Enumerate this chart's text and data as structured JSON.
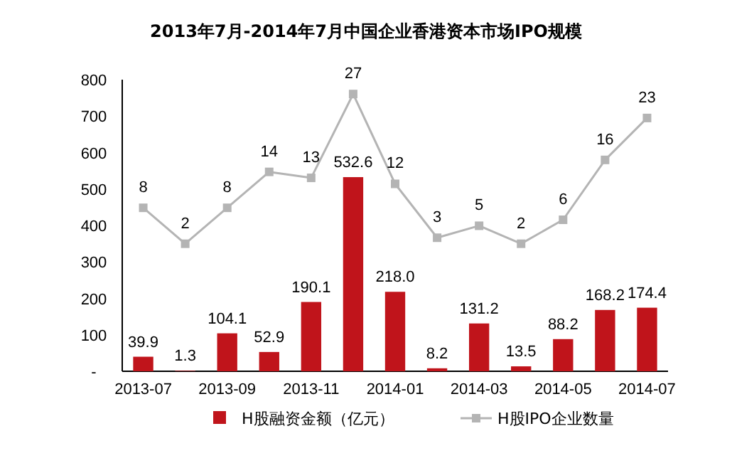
{
  "chart_data": {
    "type": "bar",
    "title": "2013年7月-2014年7月中国企业香港资本市场IPO规模",
    "categories": [
      "2013-07",
      null,
      "2013-09",
      null,
      "2013-11",
      null,
      "2014-01",
      null,
      "2014-03",
      null,
      "2014-05",
      null,
      "2014-07"
    ],
    "series": [
      {
        "name": "H股融资金额（亿元）",
        "color": "#c0141b",
        "values": [
          39.9,
          1.3,
          104.1,
          52.9,
          190.1,
          532.6,
          218.0,
          8.2,
          131.2,
          13.5,
          88.2,
          168.2,
          174.4
        ],
        "value_labels": [
          "39.9",
          "1.3",
          "104.1",
          "52.9",
          "190.1",
          "532.6",
          "218.0",
          "8.2",
          "131.2",
          "13.5",
          "88.2",
          "168.2",
          "174.4"
        ]
      },
      {
        "name": "H股IPO企业数量",
        "type": "line",
        "axis": "y2",
        "color": "#b4b4b4",
        "marker": "square",
        "values": [
          8,
          2,
          8,
          14,
          13,
          27,
          12,
          3,
          5,
          2,
          6,
          16,
          23
        ]
      }
    ],
    "ylim": [
      0,
      800
    ],
    "yticks": [
      {
        "value": 0,
        "label": "-"
      },
      100,
      200,
      300,
      400,
      500,
      600,
      700,
      800
    ],
    "y2lim": [
      -19.3,
      29.4
    ],
    "tick_labels": "xy",
    "data_labels": true,
    "grid": false,
    "legend": "bottom"
  }
}
